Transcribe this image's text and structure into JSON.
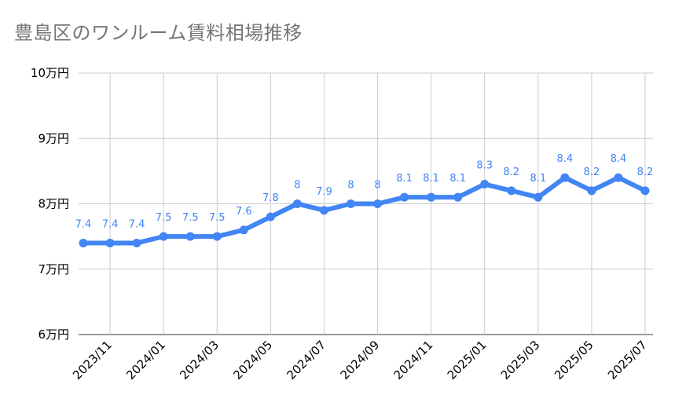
{
  "chart_data": {
    "type": "line",
    "title": "豊島区のワンルーム賃料相場推移",
    "xlabel": "",
    "ylabel": "",
    "ylim": [
      6,
      10
    ],
    "y_unit_suffix": "万円",
    "y_ticks": [
      "6万円",
      "7万円",
      "8万円",
      "9万円",
      "10万円"
    ],
    "x_tick_labels": [
      "2023/11",
      "2024/01",
      "2024/03",
      "2024/05",
      "2024/07",
      "2024/09",
      "2024/11",
      "2025/01",
      "2025/03",
      "2025/05",
      "2025/07"
    ],
    "x_tick_indices": [
      1,
      3,
      5,
      7,
      9,
      11,
      13,
      15,
      17,
      19,
      21
    ],
    "grid": true,
    "color": "#4285f4",
    "series": [
      {
        "name": "賃料相場",
        "x": [
          "2023/10",
          "2023/11",
          "2023/12",
          "2024/01",
          "2024/02",
          "2024/03",
          "2024/04",
          "2024/05",
          "2024/06",
          "2024/07",
          "2024/08",
          "2024/09",
          "2024/10",
          "2024/11",
          "2024/12",
          "2025/01",
          "2025/02",
          "2025/03",
          "2025/04",
          "2025/05",
          "2025/06",
          "2025/07"
        ],
        "values": [
          7.4,
          7.4,
          7.4,
          7.5,
          7.5,
          7.5,
          7.6,
          7.8,
          8,
          7.9,
          8,
          8,
          8.1,
          8.1,
          8.1,
          8.3,
          8.2,
          8.1,
          8.4,
          8.2,
          8.4,
          8.2
        ],
        "labels": [
          "7.4",
          "7.4",
          "7.4",
          "7.5",
          "7.5",
          "7.5",
          "7.6",
          "7.8",
          "8",
          "7.9",
          "8",
          "8",
          "8.1",
          "8.1",
          "8.1",
          "8.3",
          "8.2",
          "8.1",
          "8.4",
          "8.2",
          "8.4",
          "8.2"
        ]
      }
    ]
  }
}
